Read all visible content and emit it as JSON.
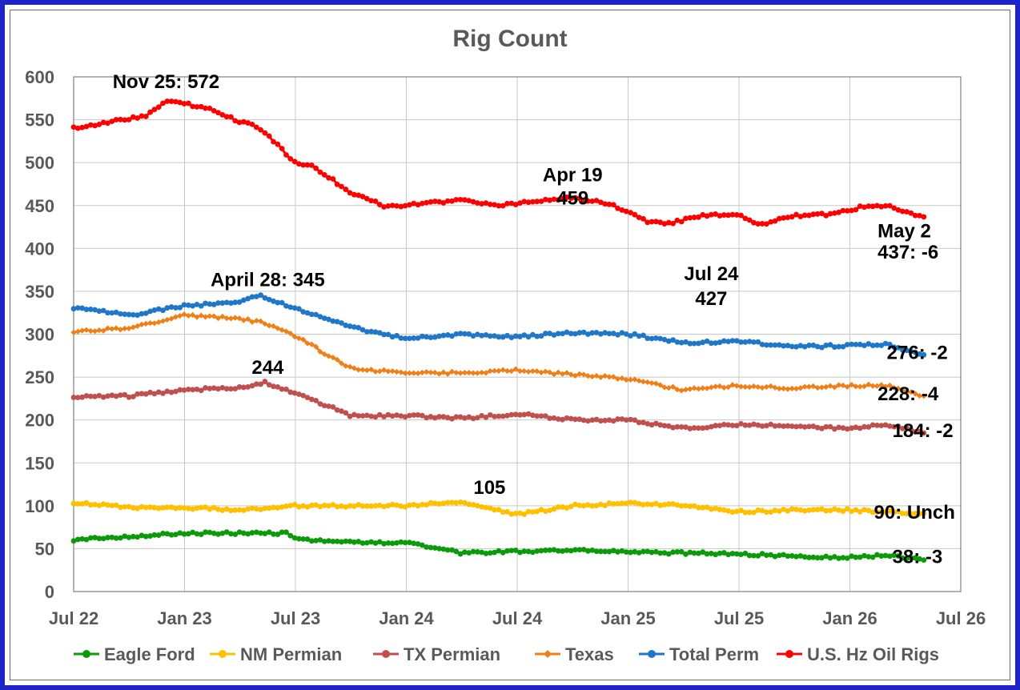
{
  "chart_data": {
    "type": "line",
    "title": "Rig Count",
    "xlabel": "",
    "ylabel": "",
    "ylim": [
      0,
      600
    ],
    "yticks": [
      0,
      50,
      100,
      150,
      200,
      250,
      300,
      350,
      400,
      450,
      500,
      550,
      600
    ],
    "xlim": [
      "Jul 22",
      "Jul 26"
    ],
    "xtick_labels": [
      "Jul 22",
      "Jan 23",
      "Jul 23",
      "Jan 24",
      "Jul 24",
      "Jan 25",
      "Jul 25",
      "Jan 26",
      "Jul 26"
    ],
    "grid": true,
    "legend_position": "bottom",
    "series": [
      {
        "name": "Eagle Ford",
        "color": "#0a9a0a",
        "marker": "circle",
        "t_months": [
          0,
          3,
          6,
          9,
          11.5,
          12,
          15,
          18,
          21,
          24,
          27,
          30,
          33,
          36,
          38,
          40,
          42,
          44,
          46
        ],
        "values": [
          60,
          64,
          68,
          68,
          68,
          61,
          57,
          57,
          45,
          47,
          48,
          46,
          45,
          44,
          42,
          40,
          40,
          42,
          38
        ]
      },
      {
        "name": "NM Permian",
        "color": "#ffc000",
        "marker": "circle",
        "t_months": [
          0,
          3,
          6,
          9,
          12,
          15,
          18,
          21,
          22,
          24,
          27,
          30,
          33,
          36,
          39,
          42,
          44,
          46
        ],
        "values": [
          104,
          98,
          98,
          95,
          100,
          100,
          100,
          105,
          98,
          90,
          100,
          103,
          101,
          93,
          95,
          95,
          93,
          90
        ]
      },
      {
        "name": "TX Permian",
        "color": "#c0504d",
        "marker": "circle",
        "t_months": [
          0,
          3,
          6,
          9,
          10.3,
          12,
          15,
          18,
          21,
          24,
          27,
          30,
          33,
          36,
          39,
          42,
          44,
          46
        ],
        "values": [
          227,
          228,
          235,
          238,
          244,
          232,
          205,
          205,
          202,
          207,
          200,
          200,
          190,
          195,
          193,
          190,
          195,
          184
        ]
      },
      {
        "name": "Texas",
        "color": "#f07f17",
        "marker": "diamond",
        "t_months": [
          0,
          3,
          6,
          9,
          10.3,
          12,
          15,
          18,
          21,
          24,
          27,
          30,
          33,
          36,
          39,
          42,
          44,
          46
        ],
        "values": [
          303,
          307,
          322,
          318,
          313,
          298,
          260,
          255,
          255,
          258,
          253,
          248,
          235,
          240,
          237,
          240,
          240,
          228
        ]
      },
      {
        "name": "Total Perm",
        "color": "#1f77c8",
        "marker": "circle",
        "t_months": [
          0,
          3,
          6,
          9,
          10,
          12,
          15,
          18,
          21,
          24,
          27,
          30,
          33,
          36,
          39,
          42,
          44,
          46
        ],
        "values": [
          331,
          322,
          333,
          337,
          345,
          330,
          308,
          295,
          300,
          297,
          302,
          300,
          290,
          292,
          285,
          287,
          288,
          276
        ]
      },
      {
        "name": "U.S. Hz Oil Rigs",
        "color": "#ff0000",
        "marker": "circle",
        "t_months": [
          0,
          2,
          4,
          5,
          7,
          9,
          10,
          12,
          13,
          15,
          17,
          19,
          21,
          23,
          25,
          27,
          29,
          31,
          32,
          34,
          36,
          37,
          39,
          41,
          43,
          44,
          45,
          46
        ],
        "values": [
          540,
          548,
          555,
          572,
          565,
          548,
          542,
          500,
          495,
          465,
          448,
          453,
          456,
          450,
          455,
          459,
          452,
          432,
          428,
          438,
          440,
          427,
          438,
          440,
          450,
          450,
          443,
          437
        ]
      }
    ]
  },
  "annotations": [
    {
      "text": "Nov 25: 572",
      "x_month": 5,
      "y_value": 587,
      "align": "middle"
    },
    {
      "text": "Apr 19",
      "x_month": 27,
      "y_value": 478,
      "align": "middle"
    },
    {
      "text": "459",
      "x_month": 27,
      "y_value": 451,
      "align": "middle"
    },
    {
      "text": "May 2",
      "x_month": 43.5,
      "y_value": 413,
      "align": "start"
    },
    {
      "text": "437: -6",
      "x_month": 43.5,
      "y_value": 388,
      "align": "start"
    },
    {
      "text": "Jul 24",
      "x_month": 34.5,
      "y_value": 363,
      "align": "middle"
    },
    {
      "text": "427",
      "x_month": 34.5,
      "y_value": 334,
      "align": "middle"
    },
    {
      "text": "April 28: 345",
      "x_month": 10.5,
      "y_value": 356,
      "align": "middle"
    },
    {
      "text": "276: -2",
      "x_month": 44,
      "y_value": 271,
      "align": "start"
    },
    {
      "text": "244",
      "x_month": 10.5,
      "y_value": 254,
      "align": "middle"
    },
    {
      "text": "228: -4",
      "x_month": 43.5,
      "y_value": 223,
      "align": "start"
    },
    {
      "text": "184: -2",
      "x_month": 44.3,
      "y_value": 180,
      "align": "start"
    },
    {
      "text": "105",
      "x_month": 22.5,
      "y_value": 114,
      "align": "middle"
    },
    {
      "text": "90: Unch",
      "x_month": 43.3,
      "y_value": 85,
      "align": "start"
    },
    {
      "text": "38: -3",
      "x_month": 44.3,
      "y_value": 33,
      "align": "start"
    }
  ]
}
